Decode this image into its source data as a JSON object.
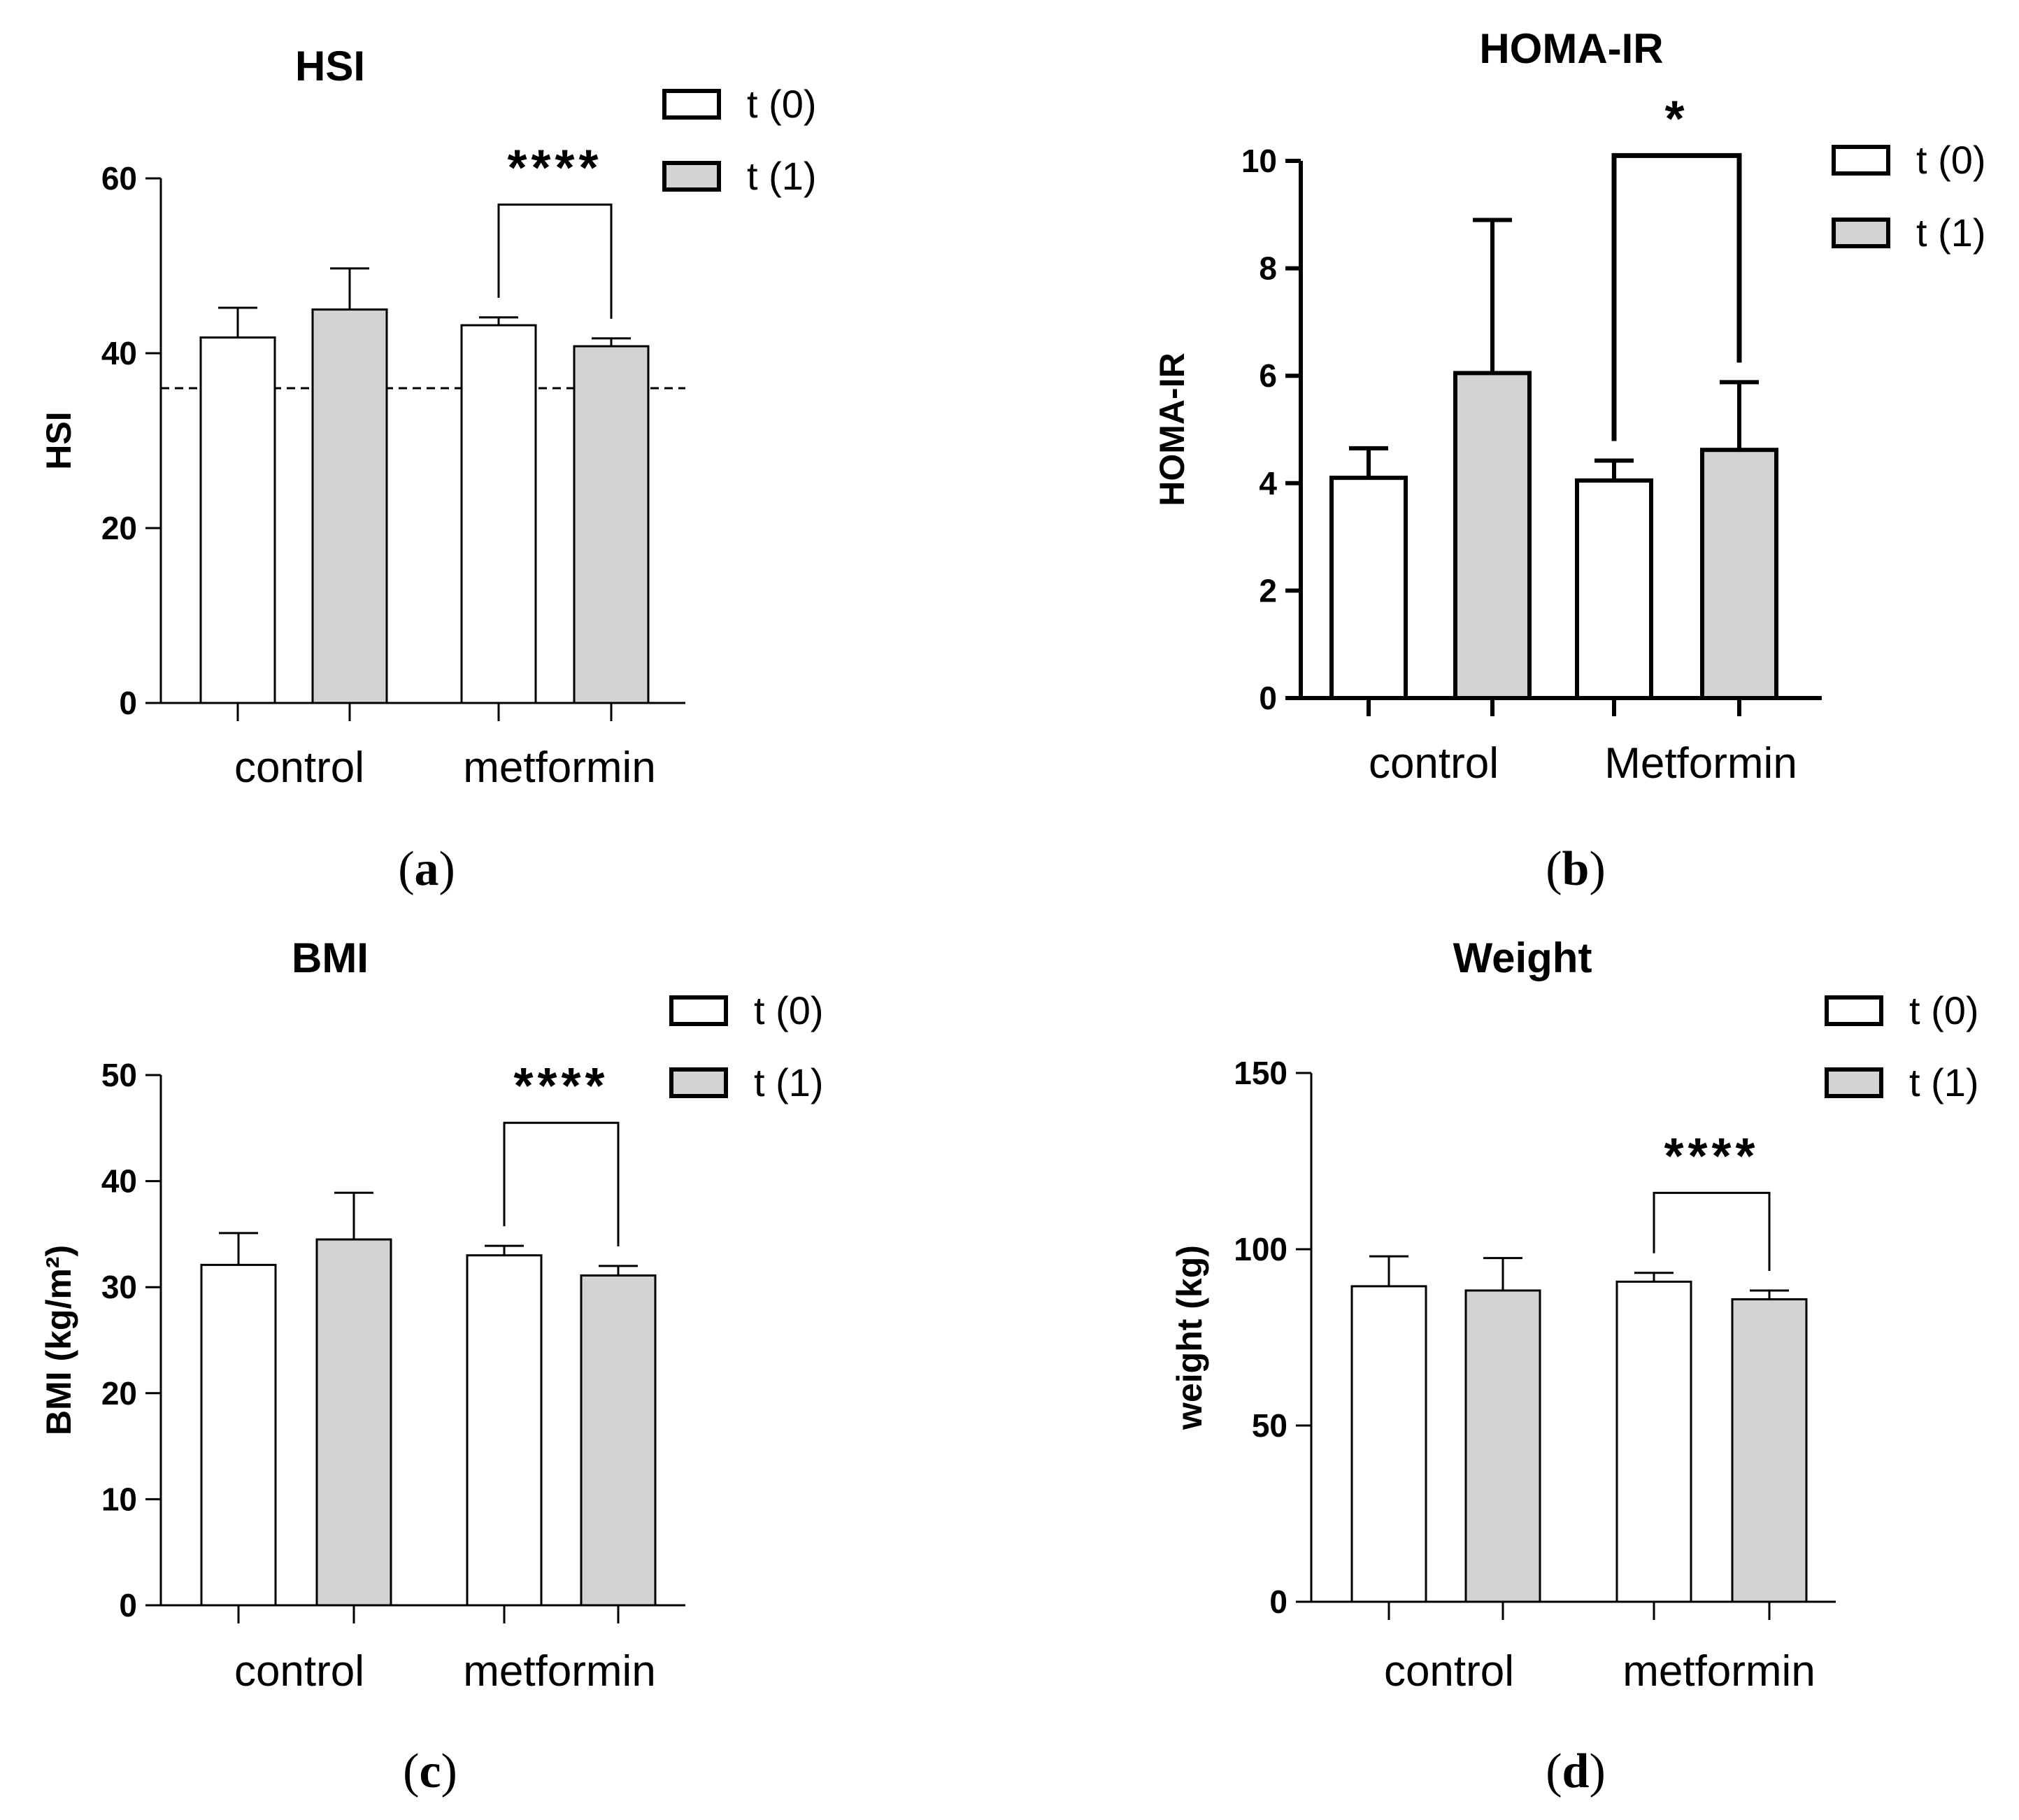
{
  "chart_data": [
    {
      "panel": "(a)",
      "panel_letter": "a",
      "type": "bar",
      "title": "HSI",
      "ylabel": "HSI",
      "xlabel": "",
      "ylim": [
        0,
        60
      ],
      "yticks": [
        0,
        20,
        40,
        60
      ],
      "categories": [
        "control",
        "metformin"
      ],
      "series": [
        {
          "name": "t (0)",
          "color": "#ffffff",
          "values": [
            41.8,
            43.2
          ],
          "errors": [
            3.4,
            0.9
          ]
        },
        {
          "name": "t (1)",
          "color": "#d3d3d3",
          "values": [
            45.0,
            40.8
          ],
          "errors": [
            4.7,
            0.9
          ]
        }
      ],
      "reference_line": 36,
      "significance": [
        {
          "category": "metformin",
          "label": "****",
          "bracket_y": 57
        }
      ],
      "legend": [
        "t (0)",
        "t (1)"
      ]
    },
    {
      "panel": "(b)",
      "panel_letter": "b",
      "type": "bar",
      "title": "HOMA-IR",
      "ylabel": "HOMA-IR",
      "xlabel": "",
      "ylim": [
        0,
        10
      ],
      "yticks": [
        0,
        2,
        4,
        6,
        8,
        10
      ],
      "categories": [
        "control",
        "Metformin"
      ],
      "series": [
        {
          "name": "t (0)",
          "color": "#ffffff",
          "values": [
            4.1,
            4.05
          ],
          "errors": [
            0.55,
            0.37
          ]
        },
        {
          "name": "t (1)",
          "color": "#d3d3d3",
          "values": [
            6.05,
            4.62
          ],
          "errors": [
            2.85,
            1.26
          ]
        }
      ],
      "significance": [
        {
          "category": "Metformin",
          "label": "*",
          "bracket_y": 10.1
        }
      ],
      "legend": [
        "t (0)",
        "t (1)"
      ]
    },
    {
      "panel": "(c)",
      "panel_letter": "c",
      "type": "bar",
      "title": "BMI",
      "ylabel": "BMI (kg/m²)",
      "xlabel": "",
      "ylim": [
        0,
        50
      ],
      "yticks": [
        0,
        10,
        20,
        30,
        40,
        50
      ],
      "categories": [
        "control",
        "metformin"
      ],
      "series": [
        {
          "name": "t (0)",
          "color": "#ffffff",
          "values": [
            32.1,
            33.0
          ],
          "errors": [
            3.0,
            0.9
          ]
        },
        {
          "name": "t (1)",
          "color": "#d3d3d3",
          "values": [
            34.5,
            31.1
          ],
          "errors": [
            4.4,
            0.9
          ]
        }
      ],
      "significance": [
        {
          "category": "metformin",
          "label": "****",
          "bracket_y": 45.5
        }
      ],
      "legend": [
        "t (0)",
        "t (1)"
      ]
    },
    {
      "panel": "(d)",
      "panel_letter": "d",
      "type": "bar",
      "title": "Weight",
      "ylabel": "weight (kg)",
      "xlabel": "",
      "ylim": [
        0,
        150
      ],
      "yticks": [
        0,
        50,
        100,
        150
      ],
      "categories": [
        "control",
        "metformin"
      ],
      "series": [
        {
          "name": "t (0)",
          "color": "#ffffff",
          "values": [
            89.5,
            90.8
          ],
          "errors": [
            8.5,
            2.5
          ]
        },
        {
          "name": "t (1)",
          "color": "#d3d3d3",
          "values": [
            88.3,
            85.8
          ],
          "errors": [
            9.2,
            2.5
          ]
        }
      ],
      "significance": [
        {
          "category": "metformin",
          "label": "****",
          "bracket_y": 116
        }
      ],
      "legend": [
        "t (0)",
        "t (1)"
      ]
    }
  ]
}
